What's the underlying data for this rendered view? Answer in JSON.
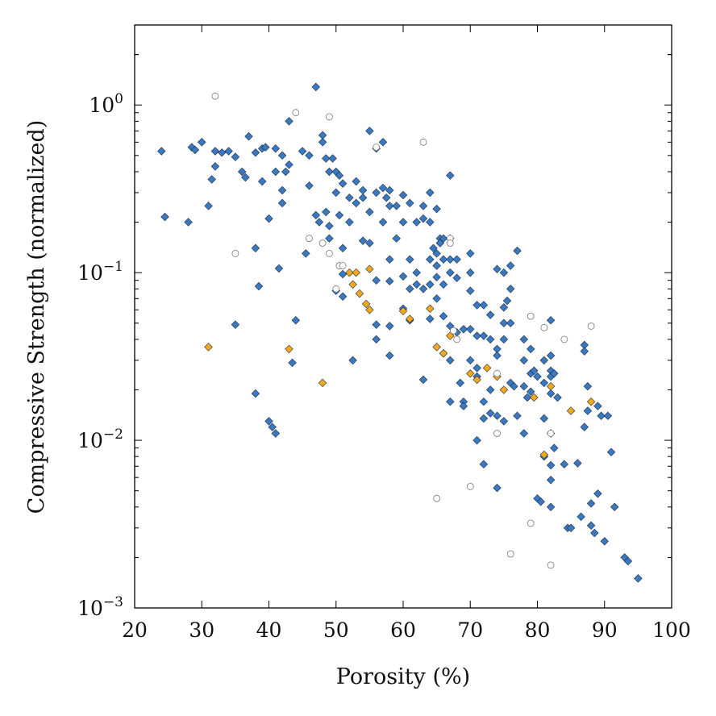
{
  "chart_data": {
    "type": "scatter",
    "title": "",
    "xlabel": "Porosity (%)",
    "ylabel": "Compressive Strength (normalized)",
    "xlim": [
      20,
      100
    ],
    "ylim": [
      0.001,
      3
    ],
    "yscale": "log",
    "grid": false,
    "legend": "none",
    "x_ticks": [
      20,
      30,
      40,
      50,
      60,
      70,
      80,
      90,
      100
    ],
    "x_tick_labels": [
      "20",
      "30",
      "40",
      "50",
      "60",
      "70",
      "80",
      "90",
      "100"
    ],
    "y_ticks": [
      {
        "value": 1,
        "base": "10",
        "exp": "0"
      },
      {
        "value": 0.1,
        "base": "10",
        "exp": "−1"
      },
      {
        "value": 0.01,
        "base": "10",
        "exp": "−2"
      },
      {
        "value": 0.001,
        "base": "10",
        "exp": "−3"
      }
    ],
    "series": [
      {
        "color": "#3a78bf",
        "marker": "diamond",
        "points": [
          [
            24,
            0.53
          ],
          [
            24.5,
            0.215
          ],
          [
            28,
            0.2
          ],
          [
            28.5,
            0.56
          ],
          [
            29,
            0.54
          ],
          [
            30,
            0.6
          ],
          [
            31,
            0.25
          ],
          [
            31.5,
            0.36
          ],
          [
            32,
            0.53
          ],
          [
            32,
            0.43
          ],
          [
            33,
            0.52
          ],
          [
            34,
            0.53
          ],
          [
            35,
            0.49
          ],
          [
            35,
            0.049
          ],
          [
            36,
            0.4
          ],
          [
            36.5,
            0.37
          ],
          [
            37,
            0.65
          ],
          [
            38,
            0.52
          ],
          [
            38,
            0.14
          ],
          [
            38,
            0.019
          ],
          [
            38.5,
            0.083
          ],
          [
            39,
            0.55
          ],
          [
            39,
            0.35
          ],
          [
            39.5,
            0.56
          ],
          [
            40,
            0.21
          ],
          [
            40,
            0.013
          ],
          [
            40.5,
            0.012
          ],
          [
            41,
            0.55
          ],
          [
            41,
            0.4
          ],
          [
            41,
            0.011
          ],
          [
            41.5,
            0.106
          ],
          [
            42,
            0.5
          ],
          [
            42,
            0.31
          ],
          [
            42,
            0.26
          ],
          [
            42.5,
            0.4
          ],
          [
            43,
            0.8
          ],
          [
            43,
            0.44
          ],
          [
            43.5,
            0.029
          ],
          [
            44,
            0.052
          ],
          [
            45,
            0.53
          ],
          [
            45.5,
            0.13
          ],
          [
            46,
            0.5
          ],
          [
            46,
            0.33
          ],
          [
            47,
            1.28
          ],
          [
            47,
            0.22
          ],
          [
            47.5,
            0.2
          ],
          [
            48,
            0.66
          ],
          [
            48,
            0.6
          ],
          [
            48.5,
            0.48
          ],
          [
            48.5,
            0.23
          ],
          [
            49,
            0.4
          ],
          [
            49,
            0.19
          ],
          [
            49,
            0.16
          ],
          [
            49.5,
            0.48
          ],
          [
            50,
            0.4
          ],
          [
            50,
            0.3
          ],
          [
            50,
            0.078
          ],
          [
            50.5,
            0.38
          ],
          [
            50.5,
            0.22
          ],
          [
            51,
            0.34
          ],
          [
            51,
            0.14
          ],
          [
            51,
            0.098
          ],
          [
            51,
            0.072
          ],
          [
            52,
            0.28
          ],
          [
            52,
            0.2
          ],
          [
            52.5,
            0.03
          ],
          [
            53,
            0.35
          ],
          [
            53,
            0.26
          ],
          [
            54,
            0.28
          ],
          [
            54,
            0.155
          ],
          [
            54,
            0.31
          ],
          [
            55,
            0.7
          ],
          [
            55,
            0.23
          ],
          [
            55,
            0.15
          ],
          [
            56,
            0.55
          ],
          [
            56,
            0.3
          ],
          [
            56,
            0.09
          ],
          [
            56,
            0.049
          ],
          [
            56,
            0.04
          ],
          [
            57,
            0.6
          ],
          [
            57,
            0.32
          ],
          [
            57,
            0.2
          ],
          [
            57.5,
            0.28
          ],
          [
            58,
            0.31
          ],
          [
            58,
            0.25
          ],
          [
            58,
            0.12
          ],
          [
            58,
            0.089
          ],
          [
            58,
            0.048
          ],
          [
            58,
            0.032
          ],
          [
            59,
            0.25
          ],
          [
            59,
            0.16
          ],
          [
            60,
            0.29
          ],
          [
            60,
            0.2
          ],
          [
            60,
            0.095
          ],
          [
            60,
            0.061
          ],
          [
            61,
            0.26
          ],
          [
            61,
            0.12
          ],
          [
            61,
            0.08
          ],
          [
            61,
            0.052
          ],
          [
            62,
            0.2
          ],
          [
            62,
            0.1
          ],
          [
            62,
            0.085
          ],
          [
            63,
            0.25
          ],
          [
            63,
            0.21
          ],
          [
            63,
            0.08
          ],
          [
            63,
            0.023
          ],
          [
            64,
            0.3
          ],
          [
            64,
            0.2
          ],
          [
            64,
            0.12
          ],
          [
            64,
            0.085
          ],
          [
            64,
            0.053
          ],
          [
            64.5,
            0.14
          ],
          [
            65,
            0.24
          ],
          [
            65,
            0.13
          ],
          [
            65,
            0.11
          ],
          [
            65,
            0.094
          ],
          [
            65,
            0.07
          ],
          [
            65.5,
            0.16
          ],
          [
            65.5,
            0.15
          ],
          [
            66,
            0.16
          ],
          [
            66,
            0.12
          ],
          [
            66,
            0.085
          ],
          [
            66,
            0.055
          ],
          [
            66,
            0.033
          ],
          [
            67,
            0.38
          ],
          [
            67,
            0.16
          ],
          [
            67,
            0.12
          ],
          [
            67,
            0.1
          ],
          [
            67,
            0.048
          ],
          [
            67,
            0.03
          ],
          [
            67,
            0.017
          ],
          [
            68,
            0.12
          ],
          [
            68,
            0.093
          ],
          [
            68,
            0.044
          ],
          [
            68.5,
            0.022
          ],
          [
            69,
            0.046
          ],
          [
            69,
            0.017
          ],
          [
            70,
            0.13
          ],
          [
            70,
            0.1
          ],
          [
            70,
            0.078
          ],
          [
            70,
            0.046
          ],
          [
            70,
            0.03
          ],
          [
            71,
            0.064
          ],
          [
            71,
            0.042
          ],
          [
            71,
            0.027
          ],
          [
            71,
            0.024
          ],
          [
            71,
            0.01
          ],
          [
            72,
            0.064
          ],
          [
            72,
            0.042
          ],
          [
            72,
            0.017
          ],
          [
            72,
            0.0135
          ],
          [
            72,
            0.0072
          ],
          [
            73,
            0.056
          ],
          [
            73,
            0.04
          ],
          [
            73,
            0.02
          ],
          [
            73,
            0.0145
          ],
          [
            74,
            0.105
          ],
          [
            74,
            0.035
          ],
          [
            74,
            0.032
          ],
          [
            74,
            0.014
          ],
          [
            74,
            0.0052
          ],
          [
            75,
            0.1
          ],
          [
            75,
            0.062
          ],
          [
            75,
            0.05
          ],
          [
            75,
            0.04
          ],
          [
            75,
            0.013
          ],
          [
            75.5,
            0.068
          ],
          [
            76,
            0.11
          ],
          [
            76,
            0.08
          ],
          [
            76,
            0.05
          ],
          [
            76,
            0.022
          ],
          [
            76.5,
            0.021
          ],
          [
            77,
            0.135
          ],
          [
            77,
            0.014
          ],
          [
            78,
            0.04
          ],
          [
            78,
            0.03
          ],
          [
            78,
            0.011
          ],
          [
            78,
            0.021
          ],
          [
            78.5,
            0.018
          ],
          [
            79,
            0.035
          ],
          [
            79,
            0.025
          ],
          [
            79,
            0.0195
          ],
          [
            79.5,
            0.026
          ],
          [
            80,
            0.024
          ],
          [
            80,
            0.0045
          ],
          [
            80.5,
            0.0043
          ],
          [
            81,
            0.03
          ],
          [
            81,
            0.022
          ],
          [
            81,
            0.0135
          ],
          [
            81,
            0.008
          ],
          [
            82,
            0.052
          ],
          [
            82,
            0.032
          ],
          [
            82,
            0.026
          ],
          [
            82,
            0.024
          ],
          [
            82,
            0.019
          ],
          [
            82,
            0.011
          ],
          [
            82,
            0.0071
          ],
          [
            82,
            0.0058
          ],
          [
            82,
            0.004
          ],
          [
            82.5,
            0.009
          ],
          [
            82.5,
            0.025
          ],
          [
            83,
            0.018
          ],
          [
            84,
            0.0072
          ],
          [
            84.5,
            0.003
          ],
          [
            85,
            0.003
          ],
          [
            86,
            0.0073
          ],
          [
            86.5,
            0.0035
          ],
          [
            87,
            0.037
          ],
          [
            87,
            0.034
          ],
          [
            87,
            0.012
          ],
          [
            87.5,
            0.021
          ],
          [
            87.5,
            0.015
          ],
          [
            88,
            0.0042
          ],
          [
            88,
            0.0031
          ],
          [
            88.5,
            0.0028
          ],
          [
            89,
            0.0048
          ],
          [
            89,
            0.016
          ],
          [
            89.5,
            0.014
          ],
          [
            90,
            0.0025
          ],
          [
            90.5,
            0.014
          ],
          [
            91,
            0.0085
          ],
          [
            91.5,
            0.004
          ],
          [
            93,
            0.002
          ],
          [
            93.5,
            0.0019
          ],
          [
            95,
            0.0015
          ],
          [
            69,
            0.016
          ]
        ]
      },
      {
        "color": "#f2a81d",
        "marker": "diamond",
        "points": [
          [
            31,
            0.036
          ],
          [
            43,
            0.035
          ],
          [
            48,
            0.022
          ],
          [
            52,
            0.1
          ],
          [
            52.5,
            0.085
          ],
          [
            53,
            0.1
          ],
          [
            53.5,
            0.075
          ],
          [
            54.5,
            0.065
          ],
          [
            55,
            0.06
          ],
          [
            55,
            0.105
          ],
          [
            60,
            0.059
          ],
          [
            61,
            0.053
          ],
          [
            64,
            0.061
          ],
          [
            65,
            0.036
          ],
          [
            66,
            0.033
          ],
          [
            67,
            0.042
          ],
          [
            70,
            0.025
          ],
          [
            71,
            0.023
          ],
          [
            72.5,
            0.027
          ],
          [
            74,
            0.024
          ],
          [
            75,
            0.02
          ],
          [
            79.5,
            0.018
          ],
          [
            81,
            0.0082
          ],
          [
            82,
            0.021
          ],
          [
            85,
            0.015
          ],
          [
            88,
            0.017
          ]
        ]
      },
      {
        "color": "#ffffff",
        "marker": "circle-open",
        "points": [
          [
            32,
            1.13
          ],
          [
            35,
            0.13
          ],
          [
            44,
            0.9
          ],
          [
            46,
            0.16
          ],
          [
            48,
            0.15
          ],
          [
            49,
            0.85
          ],
          [
            49,
            0.13
          ],
          [
            50,
            0.08
          ],
          [
            50.5,
            0.11
          ],
          [
            51,
            0.11
          ],
          [
            56,
            0.56
          ],
          [
            63,
            0.6
          ],
          [
            65,
            0.0045
          ],
          [
            67,
            0.16
          ],
          [
            67,
            0.15
          ],
          [
            67.5,
            0.045
          ],
          [
            68,
            0.04
          ],
          [
            70,
            0.0053
          ],
          [
            74,
            0.011
          ],
          [
            74,
            0.025
          ],
          [
            76,
            0.0021
          ],
          [
            79,
            0.055
          ],
          [
            79,
            0.0032
          ],
          [
            81,
            0.047
          ],
          [
            82,
            0.0018
          ],
          [
            82,
            0.011
          ],
          [
            84,
            0.04
          ],
          [
            88,
            0.048
          ]
        ]
      }
    ]
  }
}
